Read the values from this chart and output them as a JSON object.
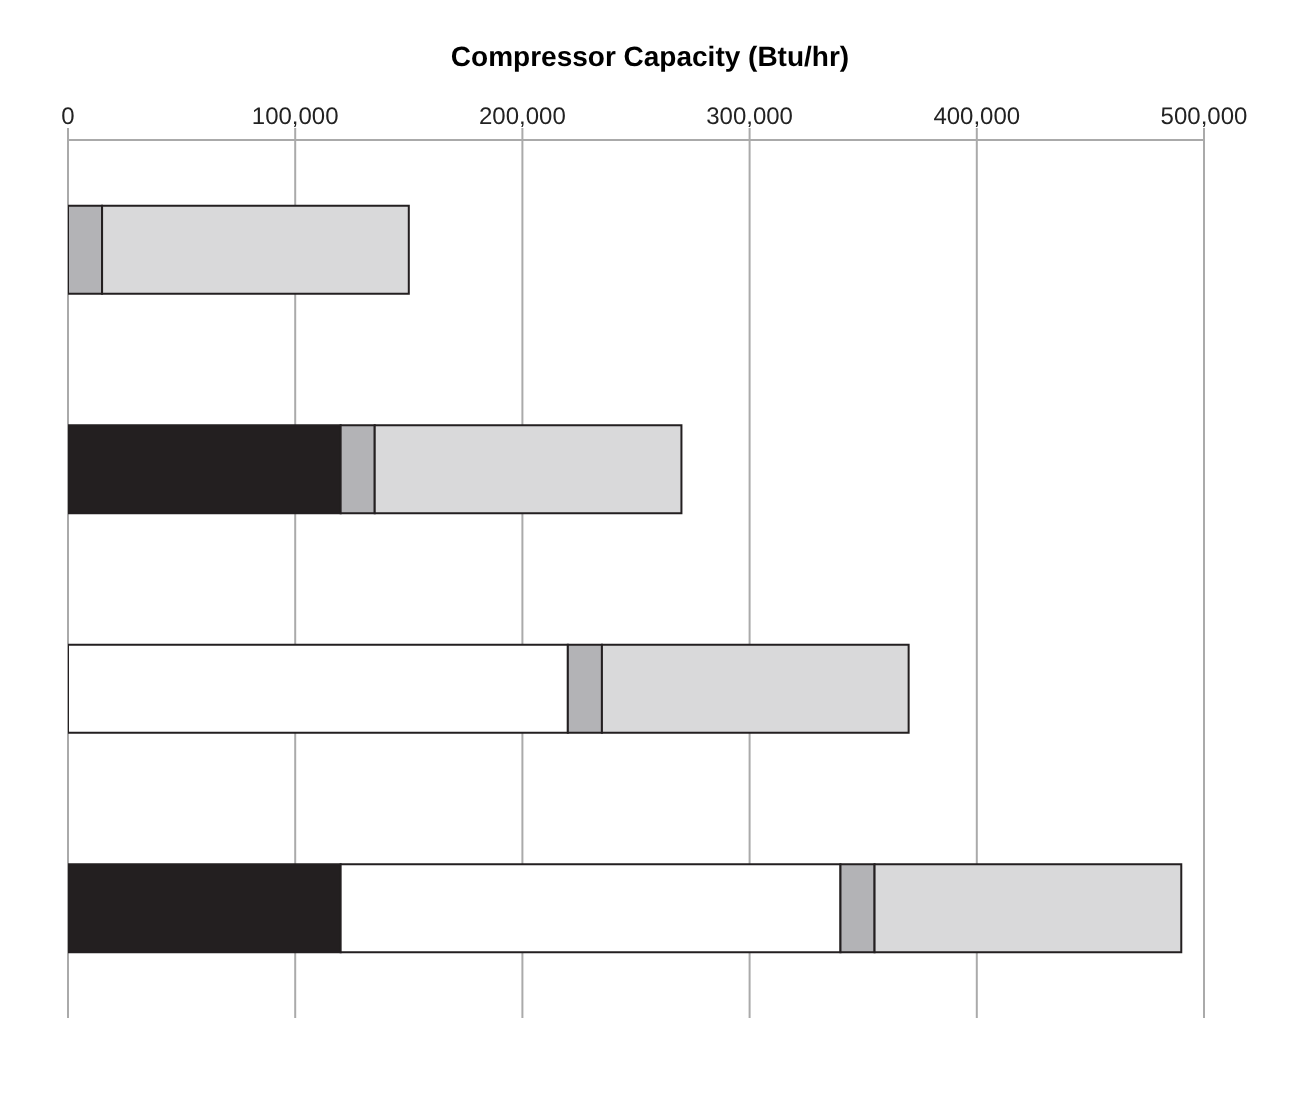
{
  "chart_data": {
    "type": "bar",
    "orientation": "horizontal",
    "stacked": true,
    "xlabel": "Compressor Capacity (Btu/hr)",
    "categories": [
      null,
      null,
      null,
      null
    ],
    "series": [
      {
        "color": "#231f20",
        "values": [
          null,
          120000,
          null,
          120000
        ]
      },
      {
        "color": "#ffffff",
        "values": [
          null,
          null,
          220000,
          220000
        ]
      },
      {
        "color": "#b3b3b6",
        "values": [
          15000,
          15000,
          15000,
          15000
        ]
      },
      {
        "color": "#d9d9da",
        "values": [
          135000,
          135000,
          135000,
          135000
        ]
      }
    ],
    "xlim": [
      0,
      500000
    ],
    "xticks": [
      0,
      {
        "value": 100000,
        "label": "100,000"
      },
      {
        "value": 200000,
        "label": "200,000"
      },
      {
        "value": 300000,
        "label": "300,000"
      },
      {
        "value": 400000,
        "label": "400,000"
      },
      {
        "value": 500000,
        "label": "500,000"
      }
    ],
    "grid": "x",
    "legend": false
  }
}
